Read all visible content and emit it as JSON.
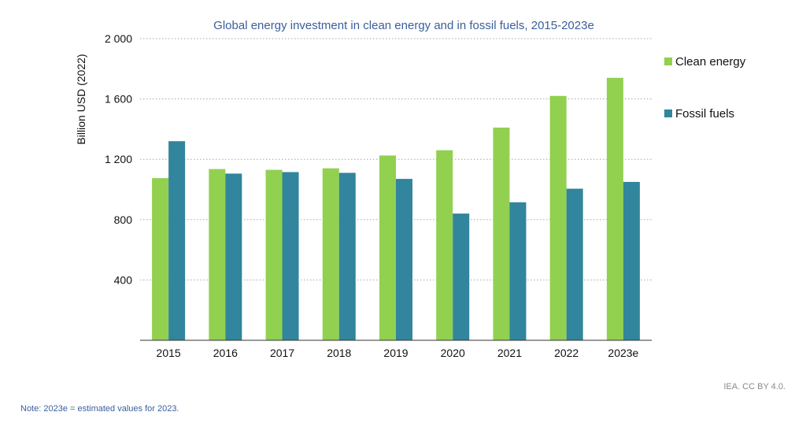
{
  "chart_data": {
    "type": "bar",
    "title": "Global energy investment in clean energy and in fossil fuels, 2015-2023e",
    "xlabel": "",
    "ylabel": "Billion USD (2022)",
    "categories": [
      "2015",
      "2016",
      "2017",
      "2018",
      "2019",
      "2020",
      "2021",
      "2022",
      "2023e"
    ],
    "series": [
      {
        "name": "Clean energy",
        "color": "#92d050",
        "values": [
          1075,
          1135,
          1130,
          1140,
          1225,
          1260,
          1410,
          1620,
          1740
        ]
      },
      {
        "name": "Fossil fuels",
        "color": "#31859c",
        "values": [
          1320,
          1105,
          1115,
          1110,
          1070,
          840,
          915,
          1005,
          1050
        ]
      }
    ],
    "ylim": [
      0,
      2000
    ],
    "yticks": [
      400,
      800,
      1200,
      1600,
      2000
    ],
    "ytick_labels": [
      "400",
      "800",
      "1 200",
      "1 600",
      "2 000"
    ],
    "grid": true,
    "legend_placement": "right"
  },
  "source": "IEA. CC BY 4.0.",
  "note": "Note:  2023e = estimated values for 2023."
}
